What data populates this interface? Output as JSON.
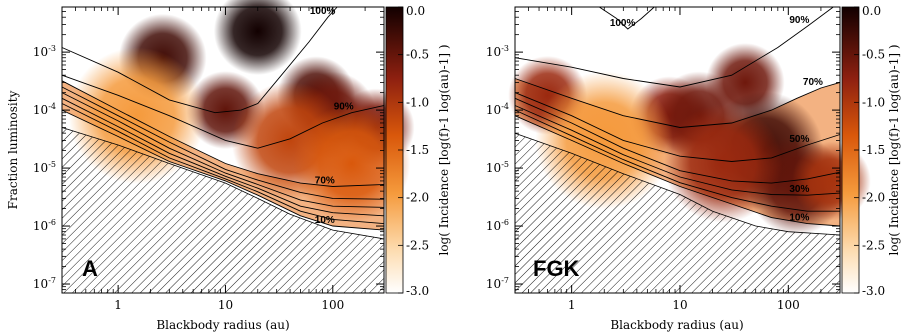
{
  "chart_data": [
    {
      "type": "heatmap",
      "panel_label": "A",
      "xlabel": "Blackbody radius (au)",
      "ylabel": "Fraction luminosity",
      "x_scale": "log",
      "y_scale": "log",
      "xlim": [
        0.3,
        300
      ],
      "ylim": [
        7e-08,
        0.006
      ],
      "x_ticks": [
        {
          "value": 1,
          "label": "1"
        },
        {
          "value": 10,
          "label": "10"
        },
        {
          "value": 100,
          "label": "100"
        }
      ],
      "y_ticks": [
        {
          "value": 1e-07,
          "label": "10-7"
        },
        {
          "value": 1e-06,
          "label": "10-6"
        },
        {
          "value": 1e-05,
          "label": "10-5"
        },
        {
          "value": 0.0001,
          "label": "10-4"
        },
        {
          "value": 0.001,
          "label": "10-3"
        }
      ],
      "colorbar": {
        "label": "log( Incidence [log(f)-1 log(au)-1] )",
        "min": -3.0,
        "max": 0.0,
        "ticks": [
          "0.0",
          "-0.5",
          "-1.0",
          "-1.5",
          "-2.0",
          "-2.5",
          "-3.0"
        ]
      },
      "detection_limit": [
        [
          0.3,
          5e-05
        ],
        [
          1,
          2.5e-05
        ],
        [
          3,
          1.2e-05
        ],
        [
          10,
          5.5e-06
        ],
        [
          20,
          3e-06
        ],
        [
          40,
          1.6e-06
        ],
        [
          100,
          8.5e-07
        ],
        [
          300,
          6e-07
        ]
      ],
      "contours": [
        {
          "label": "100%",
          "points": [
            [
              0.3,
              0.0012
            ],
            [
              1,
              0.00045
            ],
            [
              3,
              0.00015
            ],
            [
              8,
              9e-05
            ],
            [
              14,
              0.0001
            ],
            [
              20,
              0.00013
            ],
            [
              35,
              0.00045
            ],
            [
              60,
              0.0015
            ],
            [
              90,
              0.004
            ],
            [
              110,
              0.006
            ]
          ]
        },
        {
          "label": "90%",
          "points": [
            [
              0.3,
              0.0004
            ],
            [
              1,
              0.00018
            ],
            [
              3,
              8e-05
            ],
            [
              10,
              3e-05
            ],
            [
              20,
              2.2e-05
            ],
            [
              40,
              3.2e-05
            ],
            [
              80,
              6e-05
            ],
            [
              150,
              9e-05
            ],
            [
              300,
              0.00012
            ]
          ]
        },
        {
          "label": "70%",
          "points": [
            [
              0.3,
              0.00032
            ],
            [
              1,
              0.0001
            ],
            [
              3,
              3.5e-05
            ],
            [
              10,
              1.2e-05
            ],
            [
              20,
              8e-06
            ],
            [
              50,
              5.5e-06
            ],
            [
              100,
              4.8e-06
            ],
            [
              300,
              5.2e-06
            ]
          ]
        },
        {
          "label": "",
          "points": [
            [
              0.3,
              0.00025
            ],
            [
              1,
              8e-05
            ],
            [
              3,
              2.8e-05
            ],
            [
              10,
              9.5e-06
            ],
            [
              20,
              6.2e-06
            ],
            [
              50,
              3.8e-06
            ],
            [
              100,
              3e-06
            ],
            [
              300,
              2.9e-06
            ]
          ]
        },
        {
          "label": "",
          "points": [
            [
              0.3,
              0.0002
            ],
            [
              1,
              6.5e-05
            ],
            [
              3,
              2.2e-05
            ],
            [
              10,
              8.2e-06
            ],
            [
              20,
              5.2e-06
            ],
            [
              50,
              2.8e-06
            ],
            [
              100,
              2.2e-06
            ],
            [
              300,
              2.1e-06
            ]
          ]
        },
        {
          "label": "",
          "points": [
            [
              0.3,
              0.00016
            ],
            [
              1,
              5.2e-05
            ],
            [
              3,
              1.8e-05
            ],
            [
              10,
              7.2e-06
            ],
            [
              20,
              4.5e-06
            ],
            [
              50,
              2.2e-06
            ],
            [
              100,
              1.7e-06
            ],
            [
              300,
              1.5e-06
            ]
          ]
        },
        {
          "label": "",
          "points": [
            [
              0.3,
              0.00013
            ],
            [
              1,
              4.3e-05
            ],
            [
              3,
              1.5e-05
            ],
            [
              10,
              6.5e-06
            ],
            [
              20,
              3.9e-06
            ],
            [
              50,
              1.8e-06
            ],
            [
              100,
              1.3e-06
            ],
            [
              300,
              1.1e-06
            ]
          ]
        },
        {
          "label": "10%",
          "points": [
            [
              0.3,
              0.0001
            ],
            [
              1,
              3.5e-05
            ],
            [
              3,
              1.3e-05
            ],
            [
              10,
              6e-06
            ],
            [
              20,
              3.4e-06
            ],
            [
              50,
              1.5e-06
            ],
            [
              100,
              1e-06
            ],
            [
              300,
              8.5e-07
            ]
          ]
        }
      ],
      "blobs": [
        {
          "x": 2.6,
          "y": 0.0008,
          "level": -0.3,
          "spread": 0.09
        },
        {
          "x": 20,
          "y": 0.0023,
          "level": 0.0,
          "spread": 0.09
        },
        {
          "x": 10,
          "y": 0.0001,
          "level": -0.5,
          "spread": 0.08
        },
        {
          "x": 70,
          "y": 0.00018,
          "level": -0.4,
          "spread": 0.08
        },
        {
          "x": 100,
          "y": 8e-05,
          "level": -0.6,
          "spread": 0.09
        },
        {
          "x": 250,
          "y": 5e-05,
          "level": -0.7,
          "spread": 0.08
        },
        {
          "x": 40,
          "y": 3e-05,
          "level": -1.2,
          "spread": 0.12
        },
        {
          "x": 150,
          "y": 1.2e-05,
          "level": -1.4,
          "spread": 0.12
        },
        {
          "x": 1.5,
          "y": 8e-05,
          "level": -2.0,
          "spread": 0.14
        }
      ]
    },
    {
      "type": "heatmap",
      "panel_label": "FGK",
      "xlabel": "Blackbody radius (au)",
      "ylabel": "",
      "x_scale": "log",
      "y_scale": "log",
      "xlim": [
        0.3,
        300
      ],
      "ylim": [
        7e-08,
        0.006
      ],
      "x_ticks": [
        {
          "value": 1,
          "label": "1"
        },
        {
          "value": 10,
          "label": "10"
        },
        {
          "value": 100,
          "label": "100"
        }
      ],
      "y_ticks": [
        {
          "value": 1e-07,
          "label": "10-7"
        },
        {
          "value": 1e-06,
          "label": "10-6"
        },
        {
          "value": 1e-05,
          "label": "10-5"
        },
        {
          "value": 0.0001,
          "label": "10-4"
        },
        {
          "value": 0.001,
          "label": "10-3"
        }
      ],
      "colorbar": {
        "label": "log( Incidence [log(f)-1 log(au)-1] )",
        "min": -3.0,
        "max": 0.0,
        "ticks": [
          "0.0",
          "-0.5",
          "-1.0",
          "-1.5",
          "-2.0",
          "-2.5",
          "-3.0"
        ]
      },
      "detection_limit": [
        [
          0.3,
          4e-05
        ],
        [
          1,
          1.8e-05
        ],
        [
          3,
          8e-06
        ],
        [
          10,
          3.5e-06
        ],
        [
          20,
          1.8e-06
        ],
        [
          50,
          1e-06
        ],
        [
          100,
          8e-07
        ],
        [
          300,
          7e-07
        ]
      ],
      "contours": [
        {
          "label": "100%",
          "points": [
            [
              1.8,
              0.006
            ],
            [
              2.6,
              0.0038
            ],
            [
              3.3,
              0.0025
            ],
            [
              4.4,
              0.0038
            ],
            [
              5.8,
              0.006
            ]
          ]
        },
        {
          "label": "90%",
          "points": [
            [
              0.3,
              0.0008
            ],
            [
              1,
              0.00055
            ],
            [
              3,
              0.00035
            ],
            [
              10,
              0.00025
            ],
            [
              30,
              0.0004
            ],
            [
              80,
              0.0012
            ],
            [
              150,
              0.0028
            ],
            [
              260,
              0.006
            ]
          ]
        },
        {
          "label": "70%",
          "points": [
            [
              0.3,
              0.00035
            ],
            [
              1,
              0.00016
            ],
            [
              3,
              8e-05
            ],
            [
              10,
              5e-05
            ],
            [
              30,
              6e-05
            ],
            [
              70,
              0.0001
            ],
            [
              120,
              0.00016
            ],
            [
              200,
              0.00024
            ],
            [
              300,
              0.0003
            ]
          ]
        },
        {
          "label": "50%",
          "points": [
            [
              0.3,
              0.0002
            ],
            [
              1,
              8e-05
            ],
            [
              3,
              3e-05
            ],
            [
              10,
              1.6e-05
            ],
            [
              30,
              1.3e-05
            ],
            [
              70,
              1.5e-05
            ],
            [
              150,
              2.5e-05
            ],
            [
              300,
              3.8e-05
            ]
          ]
        },
        {
          "label": "",
          "points": [
            [
              0.3,
              0.00016
            ],
            [
              1,
              6e-05
            ],
            [
              3,
              2.2e-05
            ],
            [
              10,
              9e-06
            ],
            [
              30,
              6e-06
            ],
            [
              70,
              5.5e-06
            ],
            [
              150,
              6.5e-06
            ],
            [
              300,
              8.5e-06
            ]
          ]
        },
        {
          "label": "30%",
          "points": [
            [
              0.3,
              0.00012
            ],
            [
              1,
              4.5e-05
            ],
            [
              3,
              1.7e-05
            ],
            [
              10,
              7e-06
            ],
            [
              30,
              4.2e-06
            ],
            [
              70,
              3.5e-06
            ],
            [
              150,
              3.4e-06
            ],
            [
              300,
              3.7e-06
            ]
          ]
        },
        {
          "label": "",
          "points": [
            [
              0.3,
              0.0001
            ],
            [
              1,
              3.6e-05
            ],
            [
              3,
              1.4e-05
            ],
            [
              10,
              5.6e-06
            ],
            [
              30,
              3.1e-06
            ],
            [
              70,
              2.2e-06
            ],
            [
              150,
              1.8e-06
            ],
            [
              300,
              1.8e-06
            ]
          ]
        },
        {
          "label": "10%",
          "points": [
            [
              0.3,
              8e-05
            ],
            [
              1,
              3e-05
            ],
            [
              3,
              1.2e-05
            ],
            [
              10,
              4.8e-06
            ],
            [
              30,
              2.4e-06
            ],
            [
              70,
              1.4e-06
            ],
            [
              150,
              1.1e-06
            ],
            [
              300,
              1e-06
            ]
          ]
        }
      ],
      "blobs": [
        {
          "x": 0.6,
          "y": 0.00018,
          "level": -0.9,
          "spread": 0.08
        },
        {
          "x": 8,
          "y": 8e-05,
          "level": -0.8,
          "spread": 0.08
        },
        {
          "x": 15,
          "y": 8e-05,
          "level": -0.6,
          "spread": 0.09
        },
        {
          "x": 40,
          "y": 0.0003,
          "level": -0.6,
          "spread": 0.08
        },
        {
          "x": 60,
          "y": 2e-05,
          "level": -0.3,
          "spread": 0.12
        },
        {
          "x": 120,
          "y": 5e-06,
          "level": -0.5,
          "spread": 0.1
        },
        {
          "x": 25,
          "y": 1.2e-05,
          "level": -0.9,
          "spread": 0.12
        },
        {
          "x": 250,
          "y": 6e-06,
          "level": -1.0,
          "spread": 0.08
        },
        {
          "x": 2,
          "y": 3e-05,
          "level": -2.0,
          "spread": 0.14
        }
      ]
    }
  ]
}
